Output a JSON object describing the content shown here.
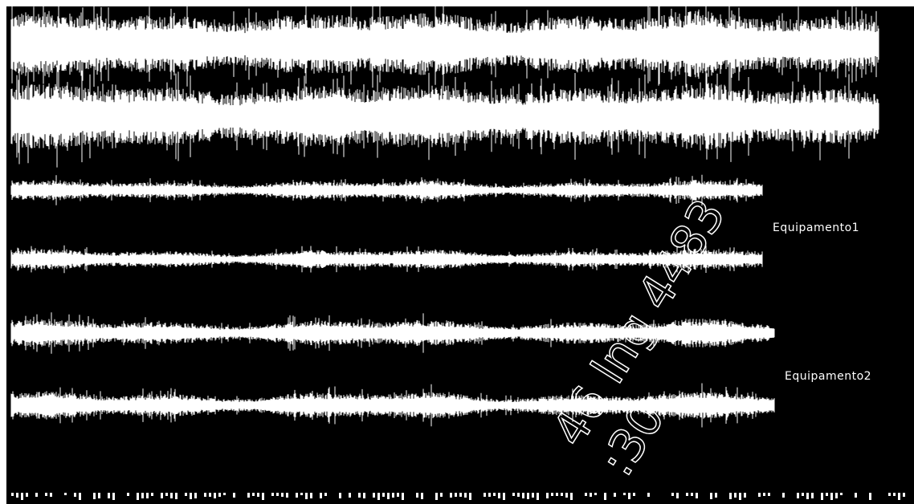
{
  "tracks": [
    {
      "label": "Equipamento1"
    },
    {
      "label": "Equipamento2"
    }
  ],
  "watermark": {
    "line1": "46 lng 4483",
    "line2": ":30"
  }
}
